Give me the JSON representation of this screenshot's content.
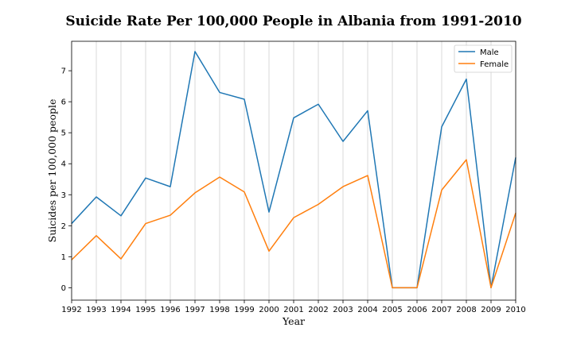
{
  "chart_data": {
    "type": "line",
    "title": "Suicide Rate Per 100,000 People in Albania from 1991-2010",
    "xlabel": "Year",
    "ylabel": "Suicides per 100,000 people",
    "x": [
      "1992",
      "1993",
      "1994",
      "1995",
      "1996",
      "1997",
      "1998",
      "1999",
      "2000",
      "2001",
      "2002",
      "2003",
      "2004",
      "2005",
      "2006",
      "2007",
      "2008",
      "2009",
      "2010"
    ],
    "xlim": [
      1992,
      2010
    ],
    "ylim": [
      -0.4,
      7.95
    ],
    "yticks": [
      "0",
      "1",
      "2",
      "3",
      "4",
      "5",
      "6",
      "7"
    ],
    "grid": "vertical",
    "legend_position": "top-right",
    "series": [
      {
        "name": "Male",
        "color": "#1f77b4",
        "values": [
          2.07,
          2.93,
          2.32,
          3.54,
          3.26,
          7.62,
          6.3,
          6.08,
          2.44,
          5.48,
          5.92,
          4.72,
          5.71,
          0.0,
          0.0,
          5.19,
          6.73,
          0.0,
          4.2
        ]
      },
      {
        "name": "Female",
        "color": "#ff7f0e",
        "values": [
          0.9,
          1.68,
          0.93,
          2.07,
          2.34,
          3.06,
          3.57,
          3.09,
          1.18,
          2.26,
          2.69,
          3.26,
          3.62,
          0.0,
          0.0,
          3.15,
          4.13,
          0.0,
          2.41
        ]
      }
    ]
  }
}
